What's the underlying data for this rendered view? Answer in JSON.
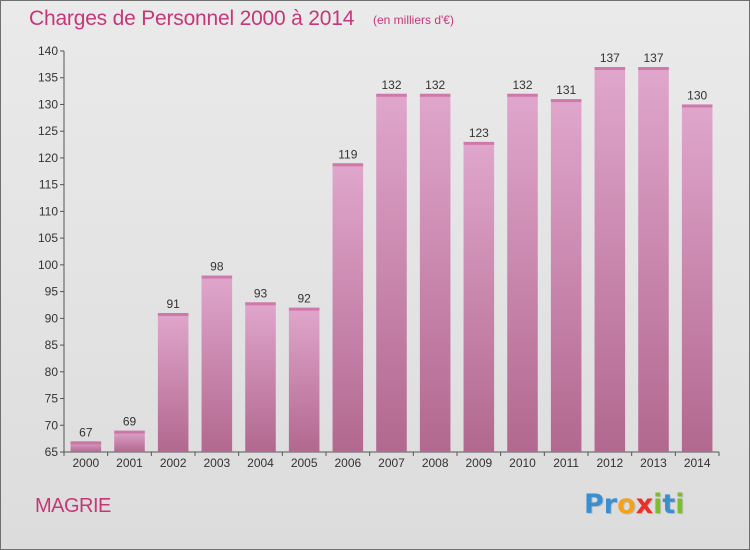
{
  "chart_data": {
    "type": "bar",
    "title": "Charges de Personnel 2000 à 2014",
    "subtitle": "(en milliers d'€)",
    "xlabel": "",
    "ylabel": "",
    "categories": [
      "2000",
      "2001",
      "2002",
      "2003",
      "2004",
      "2005",
      "2006",
      "2007",
      "2008",
      "2009",
      "2010",
      "2011",
      "2012",
      "2013",
      "2014"
    ],
    "values": [
      67,
      69,
      91,
      98,
      93,
      92,
      119,
      132,
      132,
      123,
      132,
      131,
      137,
      137,
      130
    ],
    "ylim": [
      65,
      140
    ],
    "yticks": [
      65,
      70,
      75,
      80,
      85,
      90,
      95,
      100,
      105,
      110,
      115,
      120,
      125,
      130,
      135,
      140
    ],
    "grid": false,
    "bar_color": "#c878a8"
  },
  "footer": {
    "commune": "MAGRIE",
    "logo_letters": [
      {
        "ch": "P",
        "color": "#3a8fd0"
      },
      {
        "ch": "r",
        "color": "#3a8fd0"
      },
      {
        "ch": "o",
        "color": "#f3a21c"
      },
      {
        "ch": "x",
        "color": "#e8302b"
      },
      {
        "ch": "i",
        "color": "#7cbf2b"
      },
      {
        "ch": "t",
        "color": "#3a8fd0"
      },
      {
        "ch": "i",
        "color": "#7cbf2b"
      }
    ]
  }
}
